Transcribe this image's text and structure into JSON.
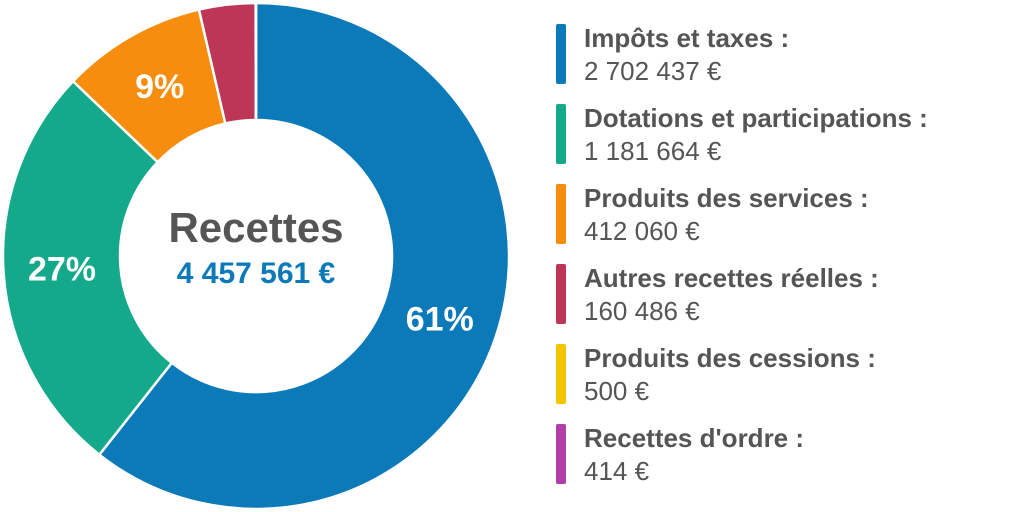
{
  "chart_data": {
    "type": "pie",
    "center_title": "Recettes",
    "center_total": "4 457 561 €",
    "slices": [
      {
        "label": "Impôts et taxes :",
        "value_text": "2 702 437 €",
        "value": 2702437,
        "color": "#0c7ab8",
        "pct_label": "61%"
      },
      {
        "label": "Dotations et participations :",
        "value_text": "1 181 664 €",
        "value": 1181664,
        "color": "#13a98a",
        "pct_label": "27%"
      },
      {
        "label": "Produits des services :",
        "value_text": "412 060 €",
        "value": 412060,
        "color": "#f68d0e",
        "pct_label": "9%"
      },
      {
        "label": "Autres recettes réelles :",
        "value_text": "160 486 €",
        "value": 160486,
        "color": "#bd3657",
        "pct_label": ""
      },
      {
        "label": "Produits des cessions :",
        "value_text": "500 €",
        "value": 500,
        "color": "#f5c400",
        "pct_label": ""
      },
      {
        "label": "Recettes d'ordre :",
        "value_text": "414 €",
        "value": 414,
        "color": "#b23ea8",
        "pct_label": ""
      }
    ]
  }
}
